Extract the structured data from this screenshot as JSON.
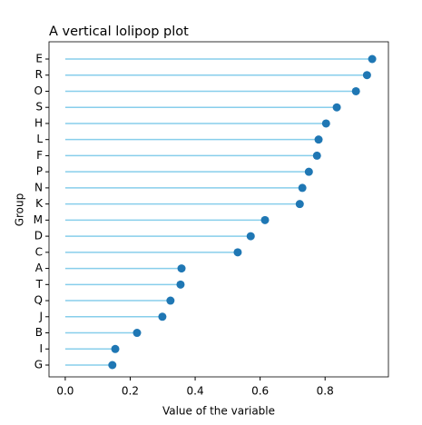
{
  "chart_data": {
    "type": "lollipop",
    "title": "A vertical lolipop plot",
    "x_label": "Value of the variable",
    "y_label": "Group",
    "categories": [
      "E",
      "R",
      "O",
      "S",
      "H",
      "L",
      "F",
      "P",
      "N",
      "K",
      "M",
      "D",
      "C",
      "A",
      "T",
      "Q",
      "J",
      "B",
      "I",
      "G"
    ],
    "values": [
      0.945,
      0.929,
      0.895,
      0.836,
      0.803,
      0.78,
      0.775,
      0.75,
      0.73,
      0.722,
      0.615,
      0.571,
      0.531,
      0.358,
      0.355,
      0.324,
      0.299,
      0.221,
      0.154,
      0.145
    ],
    "stem_color": "#87ceeb",
    "color": "#1f77b4",
    "xlim": [
      -0.05,
      0.995
    ],
    "xticks": [
      {
        "value": 0,
        "label": "0.0"
      },
      0.2,
      0.4,
      0.6,
      0.8
    ]
  }
}
